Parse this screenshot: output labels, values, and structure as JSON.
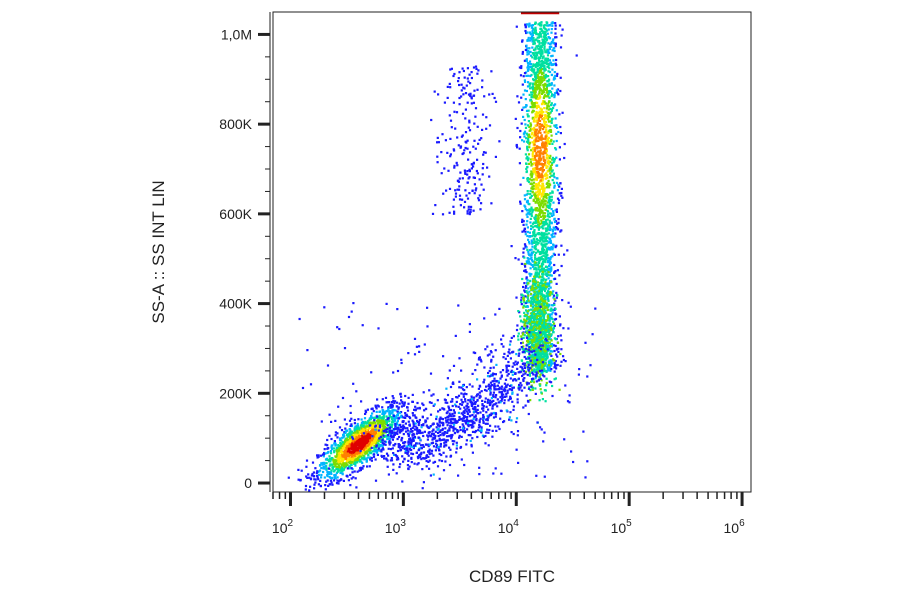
{
  "chart_data": {
    "type": "scatter",
    "subtype": "flow-cytometry density dot plot",
    "xlabel": "CD89 FITC",
    "ylabel": "SS-A :: SS INT LIN",
    "x_scale": "log",
    "xlim": [
      70,
      1200000
    ],
    "ylim": [
      -20000,
      1050000
    ],
    "x_ticks": [
      {
        "value": 100,
        "base": "10",
        "exp": "2"
      },
      {
        "value": 1000,
        "base": "10",
        "exp": "3"
      },
      {
        "value": 10000,
        "base": "10",
        "exp": "4"
      },
      {
        "value": 100000,
        "base": "10",
        "exp": "5"
      },
      {
        "value": 1000000,
        "base": "10",
        "exp": "6"
      }
    ],
    "y_ticks": [
      {
        "value": 0,
        "label": "0"
      },
      {
        "value": 200000,
        "label": "200K"
      },
      {
        "value": 400000,
        "label": "400K"
      },
      {
        "value": 600000,
        "label": "600K"
      },
      {
        "value": 800000,
        "label": "800K"
      },
      {
        "value": 1000000,
        "label": "1,0M"
      }
    ],
    "colormap": [
      "#1a1aff",
      "#00b4ff",
      "#00e0a0",
      "#7ddc00",
      "#ffe600",
      "#ff8000",
      "#e00000"
    ],
    "populations": [
      {
        "name": "",
        "x_center": 400,
        "y_center": 90000,
        "density": "very high",
        "color": "#e00000"
      },
      {
        "name": "",
        "x_center": 16000,
        "y_center": 750000,
        "density": "high",
        "color": "#7ddc00"
      },
      {
        "name": "",
        "x_center": 16000,
        "y_center": 350000,
        "density": "medium",
        "color": "#00b4ff"
      },
      {
        "name": "",
        "x_center": 4000,
        "y_center": 160000,
        "density": "low",
        "color": "#1a1aff"
      }
    ]
  }
}
